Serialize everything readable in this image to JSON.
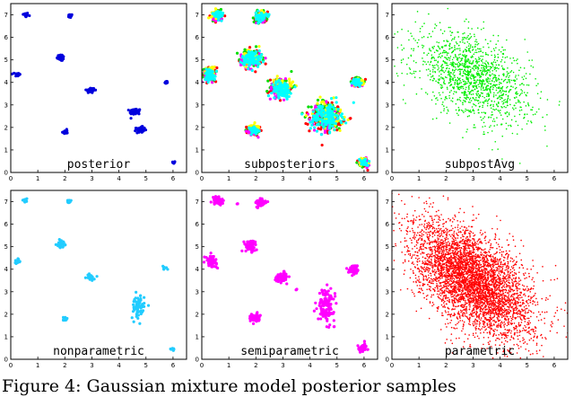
{
  "caption": "Figure 4: Gaussian mixture model posterior samples",
  "chart_data": [
    {
      "type": "scatter",
      "title": "posterior",
      "xlim": [
        0,
        6.5
      ],
      "ylim": [
        0,
        7.5
      ],
      "xticks": [
        0,
        1,
        2,
        3,
        4,
        5,
        6
      ],
      "yticks": [
        0,
        1,
        2,
        3,
        4,
        5,
        6,
        7
      ],
      "grid": false,
      "series": [
        {
          "color": "#0000dd",
          "kind": "clusters",
          "clusters": [
            {
              "x": 0.55,
              "y": 7.0,
              "sx": 0.05,
              "sy": 0.05,
              "n": 25
            },
            {
              "x": 2.2,
              "y": 6.95,
              "sx": 0.04,
              "sy": 0.04,
              "n": 20
            },
            {
              "x": 1.85,
              "y": 5.1,
              "sx": 0.07,
              "sy": 0.07,
              "n": 40
            },
            {
              "x": 0.25,
              "y": 4.35,
              "sx": 0.05,
              "sy": 0.05,
              "n": 25
            },
            {
              "x": 2.95,
              "y": 3.65,
              "sx": 0.08,
              "sy": 0.06,
              "n": 40
            },
            {
              "x": 5.75,
              "y": 4.0,
              "sx": 0.03,
              "sy": 0.03,
              "n": 15
            },
            {
              "x": 4.6,
              "y": 2.7,
              "sx": 0.1,
              "sy": 0.07,
              "n": 50
            },
            {
              "x": 4.8,
              "y": 1.9,
              "sx": 0.08,
              "sy": 0.06,
              "n": 40
            },
            {
              "x": 2.0,
              "y": 1.8,
              "sx": 0.05,
              "sy": 0.05,
              "n": 20
            },
            {
              "x": 6.05,
              "y": 0.45,
              "sx": 0.03,
              "sy": 0.03,
              "n": 10
            }
          ]
        }
      ]
    },
    {
      "type": "scatter",
      "title": "subposteriors",
      "xlim": [
        0,
        6.5
      ],
      "ylim": [
        0,
        7.5
      ],
      "xticks": [
        0,
        1,
        2,
        3,
        4,
        5,
        6
      ],
      "yticks": [
        0,
        1,
        2,
        3,
        4,
        5,
        6,
        7
      ],
      "grid": false,
      "series": [
        {
          "color": "#ff0000",
          "kind": "clusters",
          "clusters": [
            {
              "x": 0.6,
              "y": 6.95,
              "sx": 0.12,
              "sy": 0.12,
              "n": 40
            },
            {
              "x": 2.2,
              "y": 6.9,
              "sx": 0.12,
              "sy": 0.12,
              "n": 40
            },
            {
              "x": 1.8,
              "y": 5.05,
              "sx": 0.2,
              "sy": 0.2,
              "n": 60
            },
            {
              "x": 0.3,
              "y": 4.35,
              "sx": 0.12,
              "sy": 0.15,
              "n": 40
            },
            {
              "x": 2.9,
              "y": 3.75,
              "sx": 0.22,
              "sy": 0.2,
              "n": 60
            },
            {
              "x": 5.75,
              "y": 4.0,
              "sx": 0.1,
              "sy": 0.1,
              "n": 30
            },
            {
              "x": 4.6,
              "y": 2.45,
              "sx": 0.3,
              "sy": 0.32,
              "n": 90
            },
            {
              "x": 1.9,
              "y": 1.85,
              "sx": 0.12,
              "sy": 0.1,
              "n": 30
            },
            {
              "x": 6.0,
              "y": 0.4,
              "sx": 0.1,
              "sy": 0.1,
              "n": 30
            }
          ]
        },
        {
          "color": "#00dd00",
          "kind": "clusters",
          "clusters": [
            {
              "x": 0.62,
              "y": 6.98,
              "sx": 0.12,
              "sy": 0.12,
              "n": 40
            },
            {
              "x": 2.18,
              "y": 6.92,
              "sx": 0.12,
              "sy": 0.12,
              "n": 40
            },
            {
              "x": 1.82,
              "y": 5.1,
              "sx": 0.2,
              "sy": 0.2,
              "n": 60
            },
            {
              "x": 0.28,
              "y": 4.4,
              "sx": 0.12,
              "sy": 0.15,
              "n": 40
            },
            {
              "x": 2.95,
              "y": 3.8,
              "sx": 0.22,
              "sy": 0.2,
              "n": 60
            },
            {
              "x": 5.78,
              "y": 4.05,
              "sx": 0.1,
              "sy": 0.1,
              "n": 30
            },
            {
              "x": 4.65,
              "y": 2.55,
              "sx": 0.3,
              "sy": 0.32,
              "n": 90
            },
            {
              "x": 1.92,
              "y": 1.9,
              "sx": 0.12,
              "sy": 0.1,
              "n": 30
            },
            {
              "x": 6.0,
              "y": 0.45,
              "sx": 0.1,
              "sy": 0.1,
              "n": 30
            }
          ]
        },
        {
          "color": "#ff00ff",
          "kind": "clusters",
          "clusters": [
            {
              "x": 0.58,
              "y": 6.92,
              "sx": 0.1,
              "sy": 0.1,
              "n": 35
            },
            {
              "x": 2.22,
              "y": 6.88,
              "sx": 0.1,
              "sy": 0.1,
              "n": 35
            },
            {
              "x": 1.78,
              "y": 5.0,
              "sx": 0.18,
              "sy": 0.18,
              "n": 55
            },
            {
              "x": 0.32,
              "y": 4.3,
              "sx": 0.1,
              "sy": 0.13,
              "n": 35
            },
            {
              "x": 2.88,
              "y": 3.7,
              "sx": 0.2,
              "sy": 0.18,
              "n": 55
            },
            {
              "x": 5.73,
              "y": 3.97,
              "sx": 0.09,
              "sy": 0.09,
              "n": 25
            },
            {
              "x": 4.55,
              "y": 2.4,
              "sx": 0.28,
              "sy": 0.3,
              "n": 85
            },
            {
              "x": 1.88,
              "y": 1.82,
              "sx": 0.1,
              "sy": 0.09,
              "n": 25
            },
            {
              "x": 6.02,
              "y": 0.42,
              "sx": 0.09,
              "sy": 0.09,
              "n": 25
            }
          ]
        },
        {
          "color": "#ffff00",
          "kind": "clusters",
          "clusters": [
            {
              "x": 0.55,
              "y": 7.05,
              "sx": 0.1,
              "sy": 0.1,
              "n": 30
            },
            {
              "x": 2.15,
              "y": 6.95,
              "sx": 0.1,
              "sy": 0.1,
              "n": 30
            },
            {
              "x": 1.85,
              "y": 5.15,
              "sx": 0.18,
              "sy": 0.18,
              "n": 45
            },
            {
              "x": 0.3,
              "y": 4.45,
              "sx": 0.1,
              "sy": 0.13,
              "n": 30
            },
            {
              "x": 2.98,
              "y": 3.85,
              "sx": 0.2,
              "sy": 0.18,
              "n": 45
            },
            {
              "x": 5.8,
              "y": 4.02,
              "sx": 0.09,
              "sy": 0.09,
              "n": 20
            },
            {
              "x": 4.7,
              "y": 2.6,
              "sx": 0.28,
              "sy": 0.3,
              "n": 70
            },
            {
              "x": 1.95,
              "y": 1.95,
              "sx": 0.1,
              "sy": 0.09,
              "n": 25
            },
            {
              "x": 5.98,
              "y": 0.48,
              "sx": 0.09,
              "sy": 0.09,
              "n": 20
            }
          ]
        },
        {
          "color": "#00ffff",
          "kind": "clusters",
          "clusters": [
            {
              "x": 0.6,
              "y": 7.0,
              "sx": 0.1,
              "sy": 0.1,
              "n": 60
            },
            {
              "x": 2.2,
              "y": 6.9,
              "sx": 0.1,
              "sy": 0.1,
              "n": 60
            },
            {
              "x": 1.85,
              "y": 5.05,
              "sx": 0.18,
              "sy": 0.18,
              "n": 90
            },
            {
              "x": 0.3,
              "y": 4.35,
              "sx": 0.1,
              "sy": 0.13,
              "n": 60
            },
            {
              "x": 2.95,
              "y": 3.7,
              "sx": 0.18,
              "sy": 0.17,
              "n": 90
            },
            {
              "x": 5.75,
              "y": 4.0,
              "sx": 0.09,
              "sy": 0.09,
              "n": 40
            },
            {
              "x": 4.6,
              "y": 2.45,
              "sx": 0.28,
              "sy": 0.3,
              "n": 140
            },
            {
              "x": 1.9,
              "y": 1.85,
              "sx": 0.1,
              "sy": 0.09,
              "n": 40
            },
            {
              "x": 6.0,
              "y": 0.45,
              "sx": 0.08,
              "sy": 0.08,
              "n": 30
            }
          ]
        }
      ]
    },
    {
      "type": "scatter",
      "title": "subpostAvg",
      "xlim": [
        0,
        6.5
      ],
      "ylim": [
        0,
        7.5
      ],
      "xticks": [
        0,
        1,
        2,
        3,
        4,
        5,
        6
      ],
      "yticks": [
        0,
        1,
        2,
        3,
        4,
        5,
        6,
        7
      ],
      "grid": false,
      "series": [
        {
          "color": "#00ee00",
          "kind": "gaussian",
          "center": [
            3.0,
            4.2
          ],
          "sd": [
            1.05,
            1.0
          ],
          "corr": -0.45,
          "n": 1400
        }
      ]
    },
    {
      "type": "scatter",
      "title": "nonparametric",
      "xlim": [
        0,
        6.5
      ],
      "ylim": [
        0,
        7.5
      ],
      "xticks": [
        0,
        1,
        2,
        3,
        4,
        5,
        6
      ],
      "yticks": [
        0,
        1,
        2,
        3,
        4,
        5,
        6,
        7
      ],
      "grid": false,
      "series": [
        {
          "color": "#22ccff",
          "kind": "clusters",
          "clusters": [
            {
              "x": 0.55,
              "y": 7.05,
              "sx": 0.05,
              "sy": 0.04,
              "n": 15
            },
            {
              "x": 2.15,
              "y": 7.0,
              "sx": 0.04,
              "sy": 0.04,
              "n": 12
            },
            {
              "x": 1.85,
              "y": 5.1,
              "sx": 0.08,
              "sy": 0.08,
              "n": 30
            },
            {
              "x": 0.25,
              "y": 4.35,
              "sx": 0.05,
              "sy": 0.05,
              "n": 15
            },
            {
              "x": 2.95,
              "y": 3.65,
              "sx": 0.08,
              "sy": 0.06,
              "n": 25
            },
            {
              "x": 5.7,
              "y": 4.05,
              "sx": 0.04,
              "sy": 0.04,
              "n": 10
            },
            {
              "x": 4.7,
              "y": 2.3,
              "sx": 0.12,
              "sy": 0.25,
              "n": 70
            },
            {
              "x": 2.0,
              "y": 1.8,
              "sx": 0.05,
              "sy": 0.04,
              "n": 15
            },
            {
              "x": 6.0,
              "y": 0.45,
              "sx": 0.03,
              "sy": 0.03,
              "n": 8
            }
          ]
        }
      ]
    },
    {
      "type": "scatter",
      "title": "semiparametric",
      "xlim": [
        0,
        6.5
      ],
      "ylim": [
        0,
        7.5
      ],
      "xticks": [
        0,
        1,
        2,
        3,
        4,
        5,
        6
      ],
      "yticks": [
        0,
        1,
        2,
        3,
        4,
        5,
        6,
        7
      ],
      "grid": false,
      "series": [
        {
          "color": "#ff00ff",
          "kind": "clusters",
          "clusters": [
            {
              "x": 0.6,
              "y": 7.05,
              "sx": 0.1,
              "sy": 0.1,
              "n": 60
            },
            {
              "x": 2.2,
              "y": 6.95,
              "sx": 0.1,
              "sy": 0.1,
              "n": 60
            },
            {
              "x": 1.8,
              "y": 5.05,
              "sx": 0.12,
              "sy": 0.12,
              "n": 70
            },
            {
              "x": 0.35,
              "y": 4.35,
              "sx": 0.1,
              "sy": 0.12,
              "n": 60
            },
            {
              "x": 2.95,
              "y": 3.65,
              "sx": 0.12,
              "sy": 0.1,
              "n": 60
            },
            {
              "x": 5.65,
              "y": 4.0,
              "sx": 0.1,
              "sy": 0.1,
              "n": 50
            },
            {
              "x": 4.6,
              "y": 2.4,
              "sx": 0.15,
              "sy": 0.35,
              "n": 130
            },
            {
              "x": 1.95,
              "y": 1.85,
              "sx": 0.1,
              "sy": 0.1,
              "n": 50
            },
            {
              "x": 5.95,
              "y": 0.5,
              "sx": 0.09,
              "sy": 0.09,
              "n": 45
            },
            {
              "x": 1.3,
              "y": 6.9,
              "sx": 0.02,
              "sy": 0.02,
              "n": 3
            },
            {
              "x": 3.5,
              "y": 3.1,
              "sx": 0.03,
              "sy": 0.03,
              "n": 3
            }
          ]
        }
      ]
    },
    {
      "type": "scatter",
      "title": "parametric",
      "xlim": [
        0,
        6.5
      ],
      "ylim": [
        0,
        7.5
      ],
      "xticks": [
        0,
        1,
        2,
        3,
        4,
        5,
        6
      ],
      "yticks": [
        0,
        1,
        2,
        3,
        4,
        5,
        6,
        7
      ],
      "grid": false,
      "series": [
        {
          "color": "#ff0000",
          "kind": "gaussian",
          "center": [
            3.0,
            3.5
          ],
          "sd": [
            1.1,
            1.25
          ],
          "corr": -0.55,
          "n": 4500
        }
      ]
    }
  ]
}
